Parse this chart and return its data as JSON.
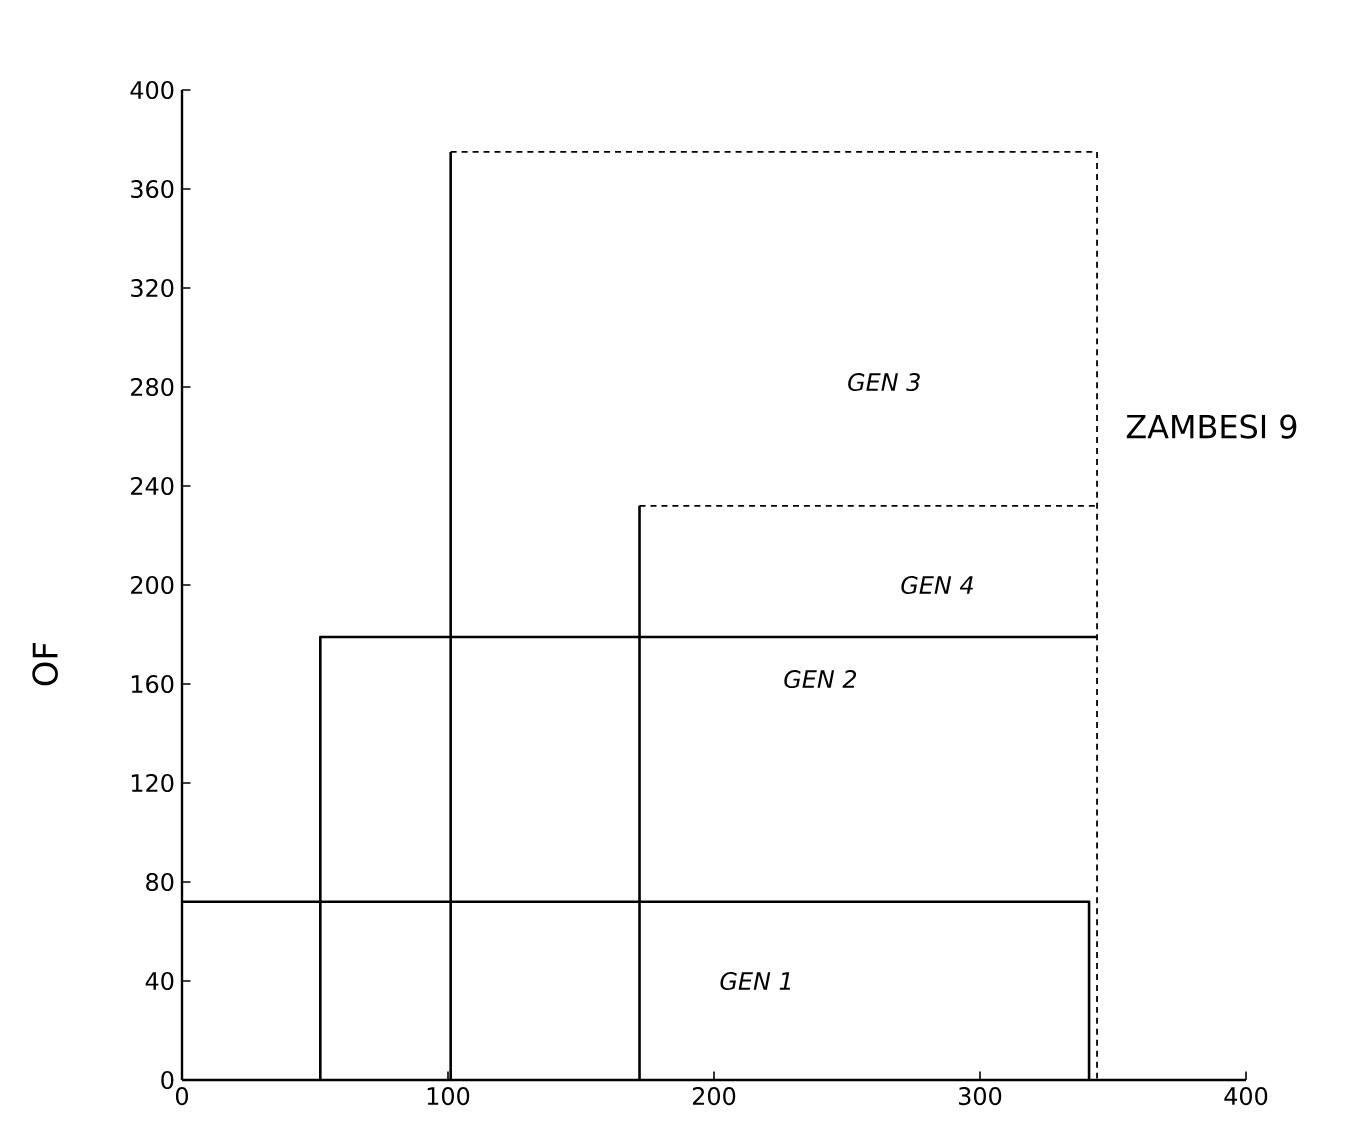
{
  "chart_data": {
    "type": "line",
    "ylabel": "OF",
    "xlim": [
      0,
      400
    ],
    "xticks": [
      0,
      100,
      200,
      300,
      400
    ],
    "ylim": [
      0,
      400
    ],
    "yticks": [
      0,
      40,
      80,
      120,
      160,
      200,
      240,
      280,
      320,
      360,
      400
    ],
    "grid": false,
    "marker": "none",
    "series": [
      {
        "color": "#000000",
        "line_style": "solid",
        "x": [
          0,
          341,
          341
        ],
        "values": [
          72,
          72,
          0
        ]
      },
      {
        "color": "#000000",
        "line_style": "solid",
        "x": [
          52,
          52,
          344
        ],
        "values": [
          0,
          179,
          179
        ]
      },
      {
        "color": "#000000",
        "line_style": "solid",
        "x": [
          101,
          101
        ],
        "values": [
          0,
          375
        ]
      },
      {
        "color": "#000000",
        "line_style": "dashed",
        "x": [
          101,
          344,
          344
        ],
        "values": [
          375,
          375,
          0
        ]
      },
      {
        "color": "#000000",
        "line_style": "solid",
        "x": [
          172,
          172
        ],
        "values": [
          0,
          232
        ]
      },
      {
        "color": "#000000",
        "line_style": "dashed",
        "x": [
          172,
          344
        ],
        "values": [
          232,
          232
        ]
      }
    ],
    "annotations": [
      "GEN 3",
      "GEN 4",
      "GEN 2",
      "GEN 1",
      "ZAMBESI 9"
    ]
  }
}
